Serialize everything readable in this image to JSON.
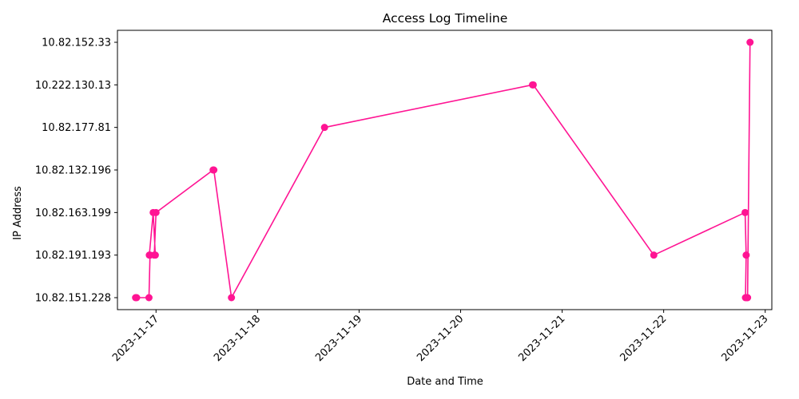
{
  "chart_data": {
    "type": "line",
    "title": "Access Log Timeline",
    "xlabel": "Date and Time",
    "ylabel": "IP Address",
    "marker": "circle",
    "grid": false,
    "colors": {
      "series": "#ff1493",
      "axis": "#000000",
      "background": "#ffffff"
    },
    "x_ticks": [
      "2023-11-17",
      "2023-11-18",
      "2023-11-19",
      "2023-11-20",
      "2023-11-21",
      "2023-11-22",
      "2023-11-23"
    ],
    "xlim": [
      "2023-11-16T14:53",
      "2023-11-23T01:34"
    ],
    "categories": [
      "10.82.151.228",
      "10.82.191.193",
      "10.82.163.199",
      "10.82.132.196",
      "10.82.177.81",
      "10.222.130.13",
      "10.82.152.33"
    ],
    "series": [
      {
        "x": [
          "2023-11-16T19:10",
          "2023-11-16T19:25",
          "2023-11-16T22:20",
          "2023-11-16T22:35",
          "2023-11-16T22:25",
          "2023-11-16T23:20",
          "2023-11-16T23:50",
          "2023-11-16T23:35",
          "2023-11-17T00:00",
          "2023-11-17T13:30",
          "2023-11-17T13:40",
          "2023-11-17T17:50",
          "2023-11-18T15:50",
          "2023-11-20T17:00",
          "2023-11-20T17:10",
          "2023-11-21T21:40",
          "2023-11-22T19:15",
          "2023-11-22T19:30",
          "2023-11-22T19:20",
          "2023-11-22T19:40",
          "2023-11-22T19:50",
          "2023-11-22T20:25"
        ],
        "y": [
          "10.82.151.228",
          "10.82.151.228",
          "10.82.151.228",
          "10.82.191.193",
          "10.82.191.193",
          "10.82.163.199",
          "10.82.191.193",
          "10.82.191.193",
          "10.82.163.199",
          "10.82.132.196",
          "10.82.132.196",
          "10.82.151.228",
          "10.82.177.81",
          "10.222.130.13",
          "10.222.130.13",
          "10.82.191.193",
          "10.82.163.199",
          "10.82.191.193",
          "10.82.151.228",
          "10.82.151.228",
          "10.82.151.228",
          "10.82.152.33"
        ]
      }
    ]
  }
}
